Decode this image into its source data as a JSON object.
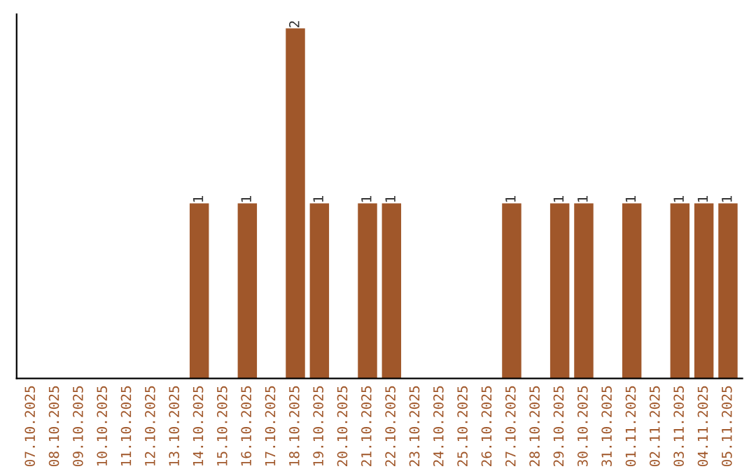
{
  "chart_data": {
    "type": "bar",
    "categories": [
      "07.10.2025",
      "08.10.2025",
      "09.10.2025",
      "10.10.2025",
      "11.10.2025",
      "12.10.2025",
      "13.10.2025",
      "14.10.2025",
      "15.10.2025",
      "16.10.2025",
      "17.10.2025",
      "18.10.2025",
      "19.10.2025",
      "20.10.2025",
      "21.10.2025",
      "22.10.2025",
      "23.10.2025",
      "24.10.2025",
      "25.10.2025",
      "26.10.2025",
      "27.10.2025",
      "28.10.2025",
      "29.10.2025",
      "30.10.2025",
      "31.10.2025",
      "01.11.2025",
      "02.11.2025",
      "03.11.2025",
      "04.11.2025",
      "05.11.2025"
    ],
    "values": [
      0,
      0,
      0,
      0,
      0,
      0,
      0,
      1,
      0,
      1,
      0,
      2,
      1,
      0,
      1,
      1,
      0,
      0,
      0,
      0,
      1,
      0,
      1,
      1,
      0,
      1,
      0,
      1,
      1,
      1
    ],
    "value_labels": [
      null,
      null,
      null,
      null,
      null,
      null,
      null,
      "1",
      null,
      "1",
      null,
      "2",
      "1",
      null,
      "1",
      "1",
      null,
      null,
      null,
      null,
      "1",
      null,
      "1",
      "1",
      null,
      "1",
      null,
      "1",
      "1",
      "1"
    ],
    "color": "#a0572a",
    "ylim": [
      0,
      2.08
    ],
    "tick_labels": "x",
    "grid": false,
    "legend": false
  }
}
